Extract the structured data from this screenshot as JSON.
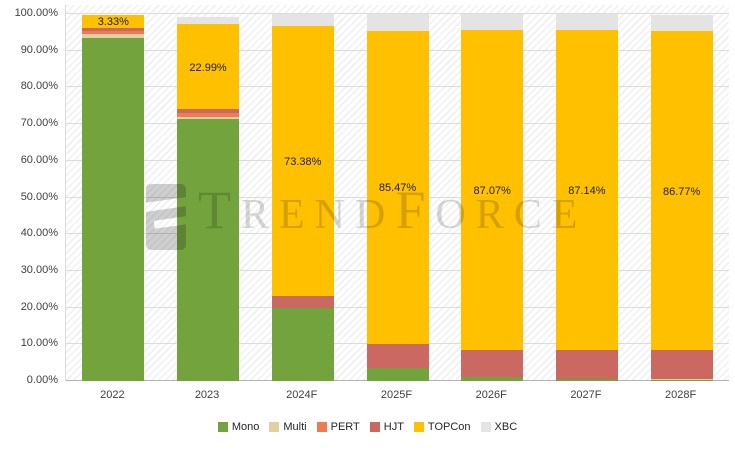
{
  "chart_data": {
    "type": "bar",
    "stacked": true,
    "title": "",
    "xlabel": "",
    "ylabel": "",
    "ylim": [
      0,
      100
    ],
    "grid": "horizontal",
    "legend_position": "bottom",
    "y_ticks": [
      "100.00%",
      "90.00%",
      "80.00%",
      "70.00%",
      "60.00%",
      "50.00%",
      "40.00%",
      "30.00%",
      "20.00%",
      "10.00%",
      "0.00%"
    ],
    "categories": [
      "2022",
      "2023",
      "2024F",
      "2025F",
      "2026F",
      "2027F",
      "2028F"
    ],
    "series": [
      {
        "name": "Mono",
        "color": "#72A33D",
        "values": [
          93.5,
          71.5,
          20.0,
          3.5,
          1.0,
          0.5,
          0.3
        ]
      },
      {
        "name": "Multi",
        "color": "#E2CFA3",
        "values": [
          1.0,
          0.4,
          0,
          0,
          0,
          0,
          0.2
        ]
      },
      {
        "name": "PERT",
        "color": "#EE7C53",
        "values": [
          1.0,
          1.1,
          0,
          0,
          0,
          0,
          0
        ]
      },
      {
        "name": "HJT",
        "color": "#CB6862",
        "values": [
          0.8,
          1.2,
          3.3,
          6.5,
          7.5,
          7.9,
          8.0
        ]
      },
      {
        "name": "TOPCon",
        "color": "#FFC000",
        "values": [
          3.33,
          22.99,
          73.38,
          85.47,
          87.07,
          87.14,
          86.77
        ]
      },
      {
        "name": "XBC",
        "color": "#E4E4E4",
        "values": [
          0,
          1.9,
          3.3,
          4.5,
          4.4,
          4.4,
          4.5
        ]
      }
    ],
    "data_labels": [
      "3.33%",
      "22.99%",
      "73.38%",
      "85.47%",
      "87.07%",
      "87.14%",
      "86.77%"
    ],
    "data_label_series": "TOPCon"
  },
  "watermark": {
    "t1": "T",
    "t2": "REND",
    "t3": "F",
    "t4": "ORCE",
    "logo_name": "trendforce-logo"
  }
}
